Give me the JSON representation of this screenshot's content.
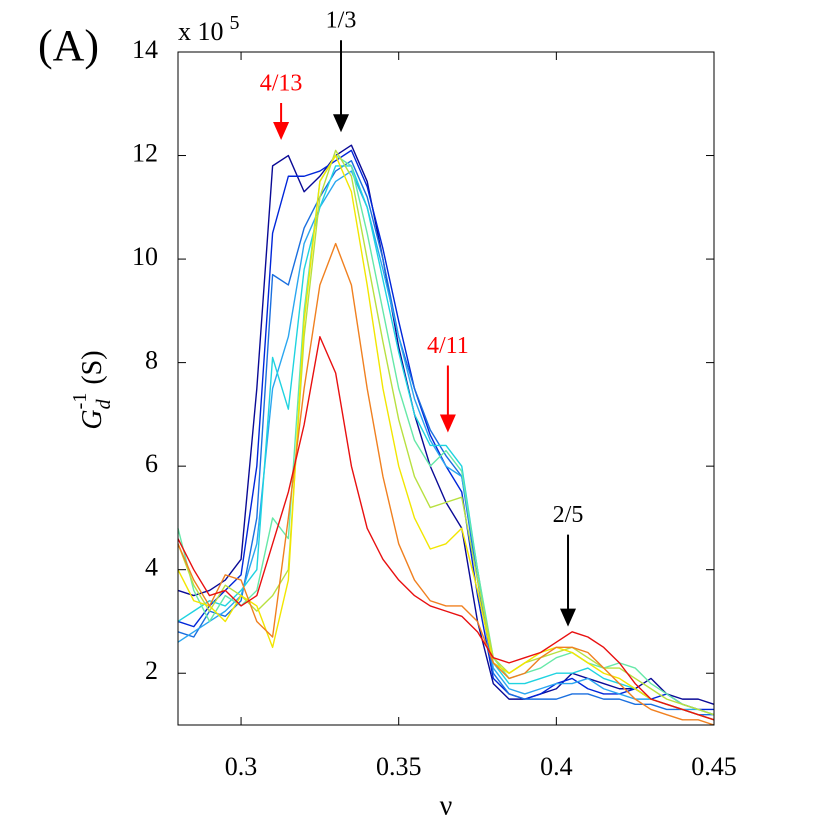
{
  "chart_data": {
    "type": "line",
    "panel_label": "(A)",
    "y_multiplier": {
      "base": "x 10",
      "exponent": "5"
    },
    "ylabel": {
      "base": "G",
      "sub": "d",
      "sup": "-1",
      "unit": "(S)"
    },
    "xlabel": "ν",
    "xlim": [
      0.28,
      0.45
    ],
    "xticks": [
      0.3,
      0.35,
      0.4,
      0.45
    ],
    "ylim": [
      1,
      14
    ],
    "yticks": [
      2,
      4,
      6,
      8,
      10,
      12,
      14
    ],
    "grid": false,
    "x": [
      0.28,
      0.285,
      0.29,
      0.295,
      0.3,
      0.305,
      0.31,
      0.315,
      0.32,
      0.325,
      0.33,
      0.335,
      0.34,
      0.345,
      0.35,
      0.355,
      0.36,
      0.365,
      0.37,
      0.375,
      0.38,
      0.385,
      0.39,
      0.395,
      0.4,
      0.405,
      0.41,
      0.415,
      0.42,
      0.425,
      0.43,
      0.435,
      0.44,
      0.445,
      0.45
    ],
    "series": [
      {
        "color": "#0a0a96",
        "values": [
          3.6,
          3.5,
          3.6,
          3.8,
          4.2,
          7.5,
          11.8,
          12.0,
          11.3,
          11.6,
          12.0,
          12.2,
          11.5,
          10.0,
          8.3,
          7.0,
          6.0,
          5.3,
          4.8,
          3.0,
          1.8,
          1.5,
          1.5,
          1.6,
          1.7,
          2.0,
          1.9,
          1.8,
          1.7,
          1.7,
          1.9,
          1.6,
          1.5,
          1.5,
          1.4
        ]
      },
      {
        "color": "#0026d9",
        "values": [
          3.0,
          2.9,
          3.3,
          3.6,
          3.9,
          6.0,
          10.5,
          11.6,
          11.6,
          11.7,
          11.9,
          12.1,
          11.4,
          10.2,
          8.8,
          7.5,
          6.6,
          6.0,
          5.5,
          3.5,
          1.9,
          1.6,
          1.5,
          1.6,
          1.8,
          1.9,
          1.7,
          1.6,
          1.6,
          1.7,
          1.5,
          1.6,
          1.4,
          1.3,
          1.3
        ]
      },
      {
        "color": "#1a6fdf",
        "values": [
          2.8,
          2.7,
          3.2,
          3.1,
          3.4,
          5.0,
          9.7,
          9.5,
          10.6,
          11.2,
          11.7,
          11.9,
          11.2,
          10.0,
          8.5,
          7.5,
          6.7,
          6.2,
          5.8,
          3.8,
          2.0,
          1.6,
          1.5,
          1.5,
          1.5,
          1.6,
          1.6,
          1.5,
          1.5,
          1.4,
          1.4,
          1.3,
          1.3,
          1.2,
          1.2
        ]
      },
      {
        "color": "#2aa6f0",
        "values": [
          2.6,
          2.8,
          3.0,
          3.2,
          3.5,
          4.5,
          7.5,
          8.5,
          10.3,
          11.0,
          11.5,
          11.7,
          11.0,
          9.8,
          8.5,
          7.3,
          6.5,
          6.0,
          5.8,
          4.0,
          2.1,
          1.7,
          1.6,
          1.7,
          1.8,
          1.8,
          1.9,
          1.7,
          1.6,
          1.5,
          1.5,
          1.4,
          1.3,
          1.3,
          1.2
        ]
      },
      {
        "color": "#1fd3e0",
        "values": [
          3.0,
          3.2,
          3.4,
          3.3,
          3.6,
          4.0,
          8.1,
          7.1,
          9.8,
          11.0,
          11.8,
          11.8,
          11.0,
          9.6,
          8.2,
          7.0,
          6.4,
          6.4,
          6.0,
          4.0,
          2.2,
          1.8,
          1.8,
          1.9,
          2.0,
          2.0,
          2.1,
          1.9,
          1.8,
          1.7,
          1.5,
          1.4,
          1.3,
          1.2,
          1.1
        ]
      },
      {
        "color": "#66e8a8",
        "values": [
          4.8,
          3.6,
          3.0,
          3.5,
          3.3,
          3.6,
          5.0,
          4.6,
          9.0,
          11.5,
          12.0,
          11.8,
          10.5,
          9.0,
          7.5,
          6.5,
          6.0,
          6.3,
          5.9,
          4.0,
          2.3,
          1.9,
          2.0,
          2.1,
          2.3,
          2.4,
          2.2,
          2.1,
          2.2,
          2.1,
          1.8,
          1.6,
          1.4,
          1.3,
          1.2
        ]
      },
      {
        "color": "#b8e040",
        "values": [
          4.5,
          3.7,
          3.2,
          3.7,
          3.5,
          3.2,
          3.5,
          4.0,
          8.5,
          11.2,
          12.1,
          11.6,
          10.0,
          8.4,
          6.9,
          5.8,
          5.2,
          5.3,
          5.4,
          3.8,
          2.3,
          2.0,
          2.2,
          2.3,
          2.4,
          2.5,
          2.3,
          2.1,
          2.1,
          1.9,
          1.7,
          1.5,
          1.4,
          1.3,
          1.2
        ]
      },
      {
        "color": "#f2e600",
        "values": [
          4.0,
          3.4,
          3.3,
          3.0,
          3.5,
          3.3,
          2.5,
          3.8,
          8.8,
          11.5,
          12.0,
          11.3,
          9.5,
          7.5,
          6.0,
          5.0,
          4.4,
          4.5,
          4.8,
          3.6,
          2.2,
          2.0,
          2.2,
          2.4,
          2.5,
          2.4,
          2.2,
          2.0,
          1.9,
          1.7,
          1.5,
          1.4,
          1.3,
          1.2,
          1.1
        ]
      },
      {
        "color": "#f08020",
        "values": [
          4.5,
          3.8,
          3.3,
          3.9,
          3.8,
          3.0,
          2.7,
          5.0,
          7.5,
          9.5,
          10.3,
          9.5,
          7.5,
          5.8,
          4.5,
          3.8,
          3.4,
          3.3,
          3.3,
          3.0,
          2.2,
          1.9,
          2.0,
          2.3,
          2.5,
          2.5,
          2.4,
          2.1,
          1.8,
          1.5,
          1.3,
          1.2,
          1.1,
          1.1,
          1.0
        ]
      },
      {
        "color": "#e81010",
        "values": [
          4.6,
          4.0,
          3.5,
          3.6,
          3.3,
          3.5,
          4.5,
          5.5,
          6.8,
          8.5,
          7.8,
          6.0,
          4.8,
          4.2,
          3.8,
          3.5,
          3.3,
          3.2,
          3.1,
          2.8,
          2.3,
          2.2,
          2.3,
          2.4,
          2.6,
          2.8,
          2.7,
          2.5,
          2.2,
          1.8,
          1.5,
          1.4,
          1.3,
          1.2,
          1.1
        ]
      }
    ],
    "annotations": [
      {
        "text": "4/13",
        "x": 0.3127,
        "y": 12.3,
        "color": "#ff0000"
      },
      {
        "text": "1/3",
        "x": 0.3317,
        "y": 12.45,
        "color": "#000000"
      },
      {
        "text": "4/11",
        "x": 0.3656,
        "y": 6.65,
        "color": "#ff0000"
      },
      {
        "text": "2/5",
        "x": 0.4037,
        "y": 2.9,
        "color": "#000000"
      }
    ]
  }
}
